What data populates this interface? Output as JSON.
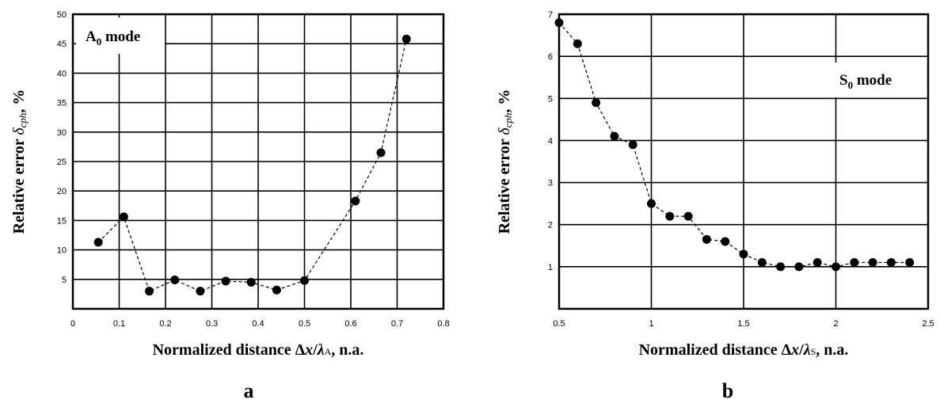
{
  "chart_data": [
    {
      "type": "line",
      "panel_label": "a",
      "annotation": {
        "main": "A",
        "sub": "0",
        "suffix": " mode"
      },
      "ylabel": {
        "prefix": "Relative error ",
        "delta": "δ",
        "sub": "cph",
        "suffix": ", %"
      },
      "xlabel": {
        "prefix": "Normalized distance Δ",
        "x": "x",
        "slash": "/",
        "lambda": "λ",
        "sub": "A",
        "suffix": ", n.a."
      },
      "xlim": [
        0,
        0.8
      ],
      "ylim": [
        0,
        50
      ],
      "xticks": [
        "0",
        "0.1",
        "0.2",
        "0.3",
        "0.4",
        "0.5",
        "0.6",
        "0.7",
        "0.8"
      ],
      "yticks": [
        "5",
        "10",
        "15",
        "20",
        "25",
        "30",
        "35",
        "40",
        "45",
        "50"
      ],
      "grid": true,
      "line_style": "dashed",
      "marker": "circle",
      "x": [
        0.055,
        0.11,
        0.165,
        0.22,
        0.275,
        0.33,
        0.385,
        0.44,
        0.5,
        0.61,
        0.665,
        0.72
      ],
      "y": [
        11.3,
        15.6,
        3.0,
        4.9,
        3.0,
        4.7,
        4.5,
        3.2,
        4.8,
        18.3,
        26.5,
        45.8
      ]
    },
    {
      "type": "line",
      "panel_label": "b",
      "annotation": {
        "main": "S",
        "sub": "0",
        "suffix": " mode"
      },
      "ylabel": {
        "prefix": "Relative error ",
        "delta": "δ",
        "sub": "cph",
        "suffix": ", %"
      },
      "xlabel": {
        "prefix": "Normalized distance Δ",
        "x": "x",
        "slash": "/",
        "lambda": "λ",
        "sub": "S",
        "suffix": ", n.a."
      },
      "xlim": [
        0.5,
        2.5
      ],
      "ylim": [
        0,
        7
      ],
      "xticks": [
        "0.5",
        "1",
        "1.5",
        "2",
        "2.5"
      ],
      "yticks": [
        "1",
        "2",
        "3",
        "4",
        "5",
        "6",
        "7"
      ],
      "grid": true,
      "line_style": "dashed",
      "marker": "circle",
      "x": [
        0.5,
        0.6,
        0.7,
        0.8,
        0.9,
        1.0,
        1.1,
        1.2,
        1.3,
        1.4,
        1.5,
        1.6,
        1.7,
        1.8,
        1.9,
        2.0,
        2.1,
        2.2,
        2.3,
        2.4
      ],
      "y": [
        6.8,
        6.3,
        4.9,
        4.1,
        3.9,
        2.5,
        2.2,
        2.2,
        1.65,
        1.6,
        1.3,
        1.1,
        1.0,
        1.0,
        1.1,
        1.0,
        1.1,
        1.1,
        1.1,
        1.1
      ]
    }
  ]
}
